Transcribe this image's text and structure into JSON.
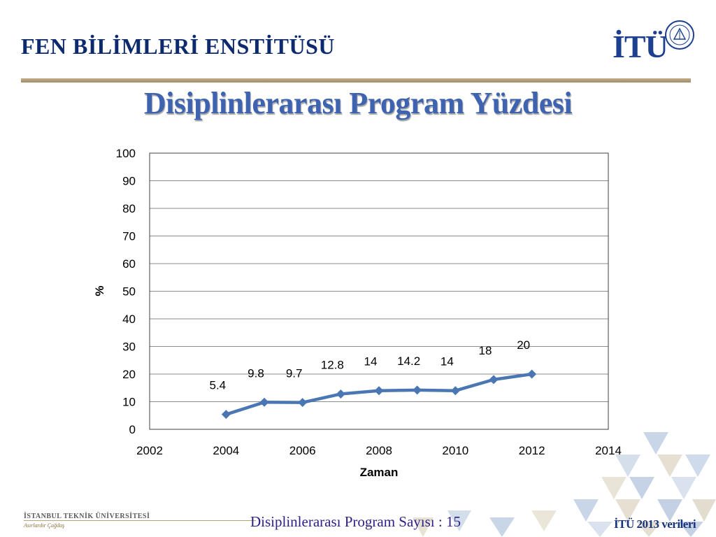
{
  "header": {
    "institute": "FEN BİLİMLERİ ENSTİTÜSÜ",
    "logo_text": "İTÜ"
  },
  "slide": {
    "title": "Disiplinlerarası Program Yüzdesi"
  },
  "footer": {
    "university": "İSTANBUL TEKNİK ÜNİVERSİTESİ",
    "motto": "Asırlardır Çağdaş",
    "program_count": "Disiplinlerarası Program Sayısı : 15",
    "source": "İTÜ 2013 verileri"
  },
  "colors": {
    "series": "#4a76b3",
    "title": "#3e63b0",
    "header": "#0d2a6e",
    "gold": "#b19e78"
  },
  "chart_data": {
    "type": "line",
    "title": "",
    "xlabel": "Zaman",
    "ylabel": "%",
    "xlim": [
      2002,
      2014
    ],
    "ylim": [
      0,
      100
    ],
    "xticks": [
      2002,
      2004,
      2006,
      2008,
      2010,
      2012,
      2014
    ],
    "yticks": [
      0,
      10,
      20,
      30,
      40,
      50,
      60,
      70,
      80,
      90,
      100
    ],
    "grid": true,
    "legend": "none",
    "series": [
      {
        "x": [
          2004,
          2005,
          2006,
          2007,
          2008,
          2009,
          2010,
          2011,
          2012
        ],
        "y": [
          5.4,
          9.8,
          9.7,
          12.8,
          14,
          14.2,
          14,
          18,
          20
        ],
        "labels": [
          "5.4",
          "9.8",
          "9.7",
          "12.8",
          "14",
          "14.2",
          "14",
          "18",
          "20"
        ]
      }
    ]
  }
}
